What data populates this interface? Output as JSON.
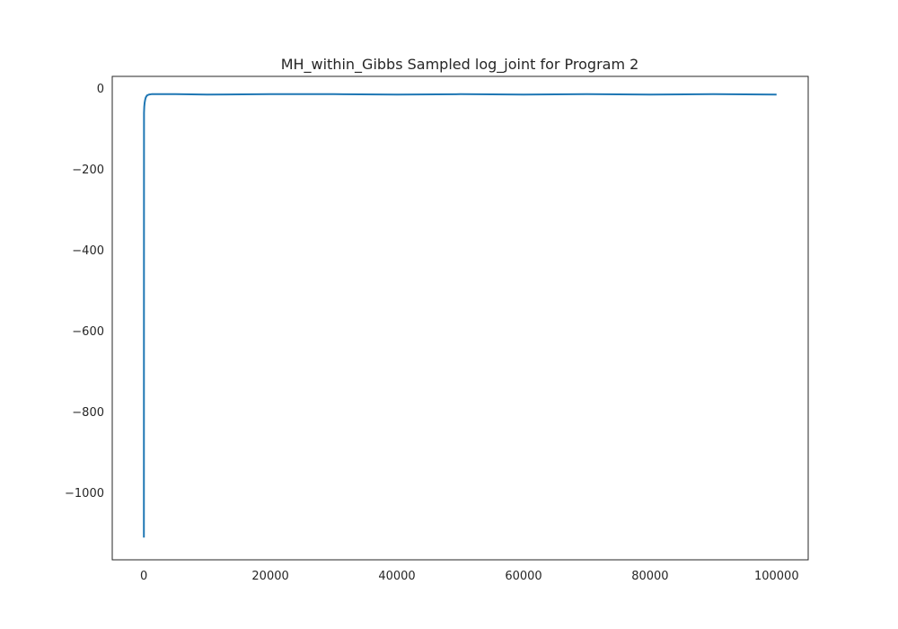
{
  "chart_data": {
    "type": "line",
    "title": "MH_within_Gibbs Sampled log_joint for Program 2",
    "xlabel": "",
    "ylabel": "",
    "xlim": [
      -5000,
      105000
    ],
    "ylim": [
      -1165,
      30
    ],
    "xticks": [
      0,
      20000,
      40000,
      60000,
      80000,
      100000
    ],
    "xtick_labels": [
      "0",
      "20000",
      "40000",
      "60000",
      "80000",
      "100000"
    ],
    "yticks": [
      0,
      -200,
      -400,
      -600,
      -800,
      -1000
    ],
    "ytick_labels": [
      "0",
      "−200",
      "−400",
      "−600",
      "−800",
      "−1000"
    ],
    "grid": false,
    "colors": {
      "series": "#1f77b4",
      "axes": "#262626"
    },
    "series": [
      {
        "x": [
          0,
          20,
          60,
          120,
          200,
          300,
          500,
          800,
          1200,
          2000,
          5000,
          10000,
          20000,
          30000,
          40000,
          50000,
          60000,
          70000,
          80000,
          90000,
          100000
        ],
        "y": [
          -1110,
          -60,
          -45,
          -35,
          -28,
          -22,
          -17,
          -15,
          -14,
          -14,
          -14,
          -15,
          -14,
          -14,
          -15,
          -14,
          -15,
          -14,
          -15,
          -14,
          -15
        ]
      }
    ]
  }
}
